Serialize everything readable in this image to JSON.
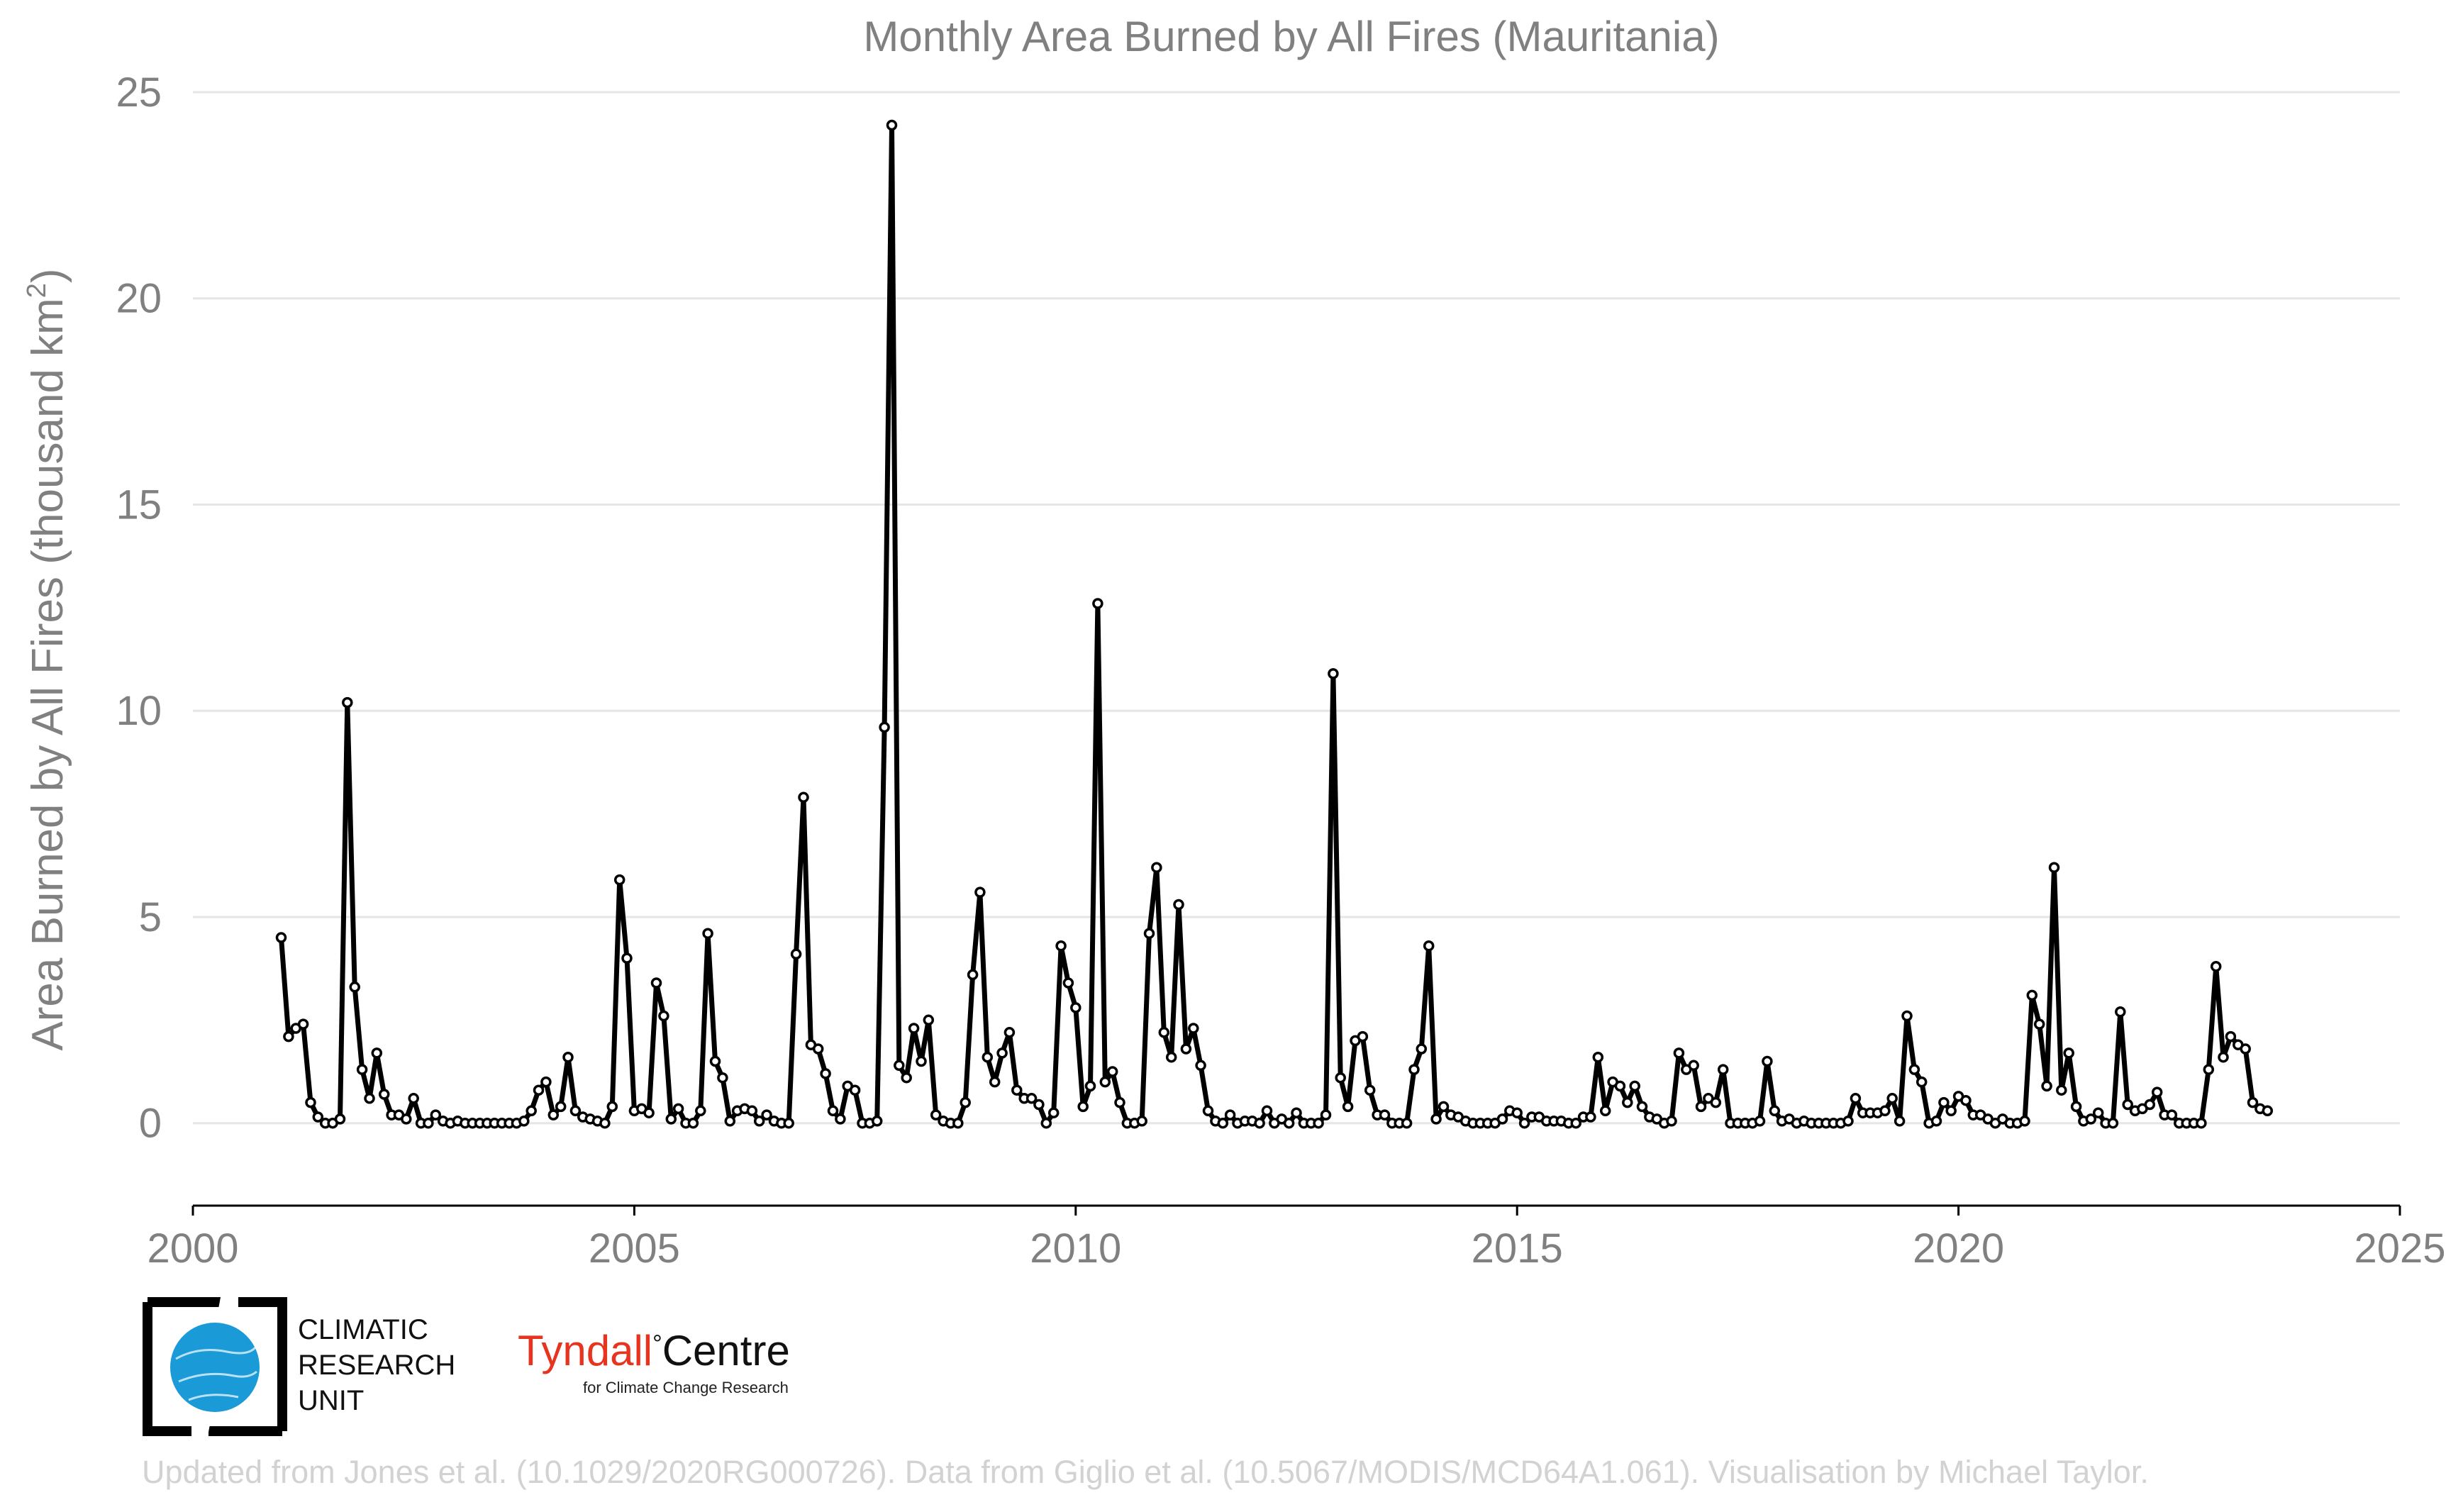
{
  "chart_data": {
    "type": "line",
    "title": "Monthly Area Burned by All Fires (Mauritania)",
    "ylabel": "Area Burned by All Fires (thousand km",
    "ylabel_sup": "2",
    "ylabel_close": ")",
    "xlabel": "",
    "xlim": [
      2000,
      2025
    ],
    "ylim": [
      -2,
      25
    ],
    "x_ticks": [
      2000,
      2005,
      2010,
      2015,
      2020,
      2025
    ],
    "y_ticks": [
      0,
      5,
      10,
      15,
      20,
      25
    ],
    "grid": "horizontal",
    "series": [
      {
        "color": "#000000",
        "x_start": 2001.0,
        "x_step_months": 1,
        "values": [
          4.5,
          2.1,
          2.3,
          2.4,
          0.5,
          0.15,
          0.0,
          0.0,
          0.1,
          10.2,
          3.3,
          1.3,
          0.6,
          1.7,
          0.7,
          0.2,
          0.2,
          0.1,
          0.6,
          0.0,
          0.0,
          0.2,
          0.05,
          0.0,
          0.05,
          0.0,
          0.0,
          0.0,
          0.0,
          0.0,
          0.0,
          0.0,
          0.0,
          0.05,
          0.3,
          0.8,
          1.0,
          0.2,
          0.4,
          1.6,
          0.3,
          0.15,
          0.1,
          0.05,
          0.0,
          0.4,
          5.9,
          4.0,
          0.3,
          0.35,
          0.25,
          3.4,
          2.6,
          0.1,
          0.35,
          0.0,
          0.0,
          0.3,
          4.6,
          1.5,
          1.1,
          0.05,
          0.3,
          0.35,
          0.3,
          0.05,
          0.2,
          0.05,
          0.0,
          0.0,
          4.1,
          7.9,
          1.9,
          1.8,
          1.2,
          0.3,
          0.1,
          0.9,
          0.8,
          0.0,
          0.0,
          0.05,
          9.6,
          24.2,
          1.4,
          1.1,
          2.3,
          1.5,
          2.5,
          0.2,
          0.05,
          0.0,
          0.0,
          0.5,
          3.6,
          5.6,
          1.6,
          1.0,
          1.7,
          2.2,
          0.8,
          0.6,
          0.6,
          0.45,
          0.0,
          0.25,
          4.3,
          3.4,
          2.8,
          0.4,
          0.9,
          12.6,
          1.0,
          1.25,
          0.5,
          0.0,
          0.0,
          0.05,
          4.6,
          6.2,
          2.2,
          1.6,
          5.3,
          1.8,
          2.3,
          1.4,
          0.3,
          0.05,
          0.0,
          0.2,
          0.0,
          0.05,
          0.05,
          0.0,
          0.3,
          0.0,
          0.1,
          0.0,
          0.25,
          0.0,
          0.0,
          0.0,
          0.2,
          10.9,
          1.1,
          0.4,
          2.0,
          2.1,
          0.8,
          0.2,
          0.2,
          0.0,
          0.0,
          0.0,
          1.3,
          1.8,
          4.3,
          0.1,
          0.4,
          0.2,
          0.15,
          0.05,
          0.0,
          0.0,
          0.0,
          0.0,
          0.1,
          0.3,
          0.25,
          0.0,
          0.15,
          0.15,
          0.05,
          0.05,
          0.05,
          0.0,
          0.0,
          0.15,
          0.15,
          1.6,
          0.3,
          1.0,
          0.9,
          0.5,
          0.9,
          0.4,
          0.15,
          0.1,
          0.0,
          0.05,
          1.7,
          1.3,
          1.4,
          0.4,
          0.6,
          0.5,
          1.3,
          0.0,
          0.0,
          0.0,
          0.0,
          0.05,
          1.5,
          0.3,
          0.05,
          0.1,
          0.0,
          0.05,
          0.0,
          0.0,
          0.0,
          0.0,
          0.0,
          0.05,
          0.6,
          0.25,
          0.25,
          0.25,
          0.3,
          0.6,
          0.05,
          2.6,
          1.3,
          1.0,
          0.0,
          0.05,
          0.5,
          0.3,
          0.65,
          0.55,
          0.2,
          0.2,
          0.1,
          0.0,
          0.1,
          0.0,
          0.0,
          0.05,
          3.1,
          2.4,
          0.9,
          6.2,
          0.8,
          1.7,
          0.4,
          0.05,
          0.1,
          0.25,
          0.0,
          0.0,
          2.7,
          0.45,
          0.3,
          0.35,
          0.45,
          0.75,
          0.2,
          0.2,
          0.0,
          0.0,
          0.0,
          0.0,
          1.3,
          3.8,
          1.6,
          2.1,
          1.9,
          1.8,
          0.5,
          0.35,
          0.3
        ]
      }
    ]
  },
  "logos": {
    "cru_line1": "CLIMATIC",
    "cru_line2": "RESEARCH",
    "cru_line3": "UNIT",
    "tyndall_name1": "Tyndall",
    "tyndall_deg": "°",
    "tyndall_name2": "Centre",
    "tyndall_sub": "for Climate Change Research"
  },
  "credit": "Updated from Jones et al. (10.1029/2020RG000726). Data from Giglio et al. (10.5067/MODIS/MCD64A1.061). Visualisation by Michael Taylor.",
  "colors": {
    "title": "#808080",
    "axis_text": "#808080",
    "grid": "#e6e6e6",
    "line": "#000000",
    "credit": "#d2d2d2",
    "tyndall_red": "#e8331e",
    "cru_blue": "#1a9ad6"
  }
}
